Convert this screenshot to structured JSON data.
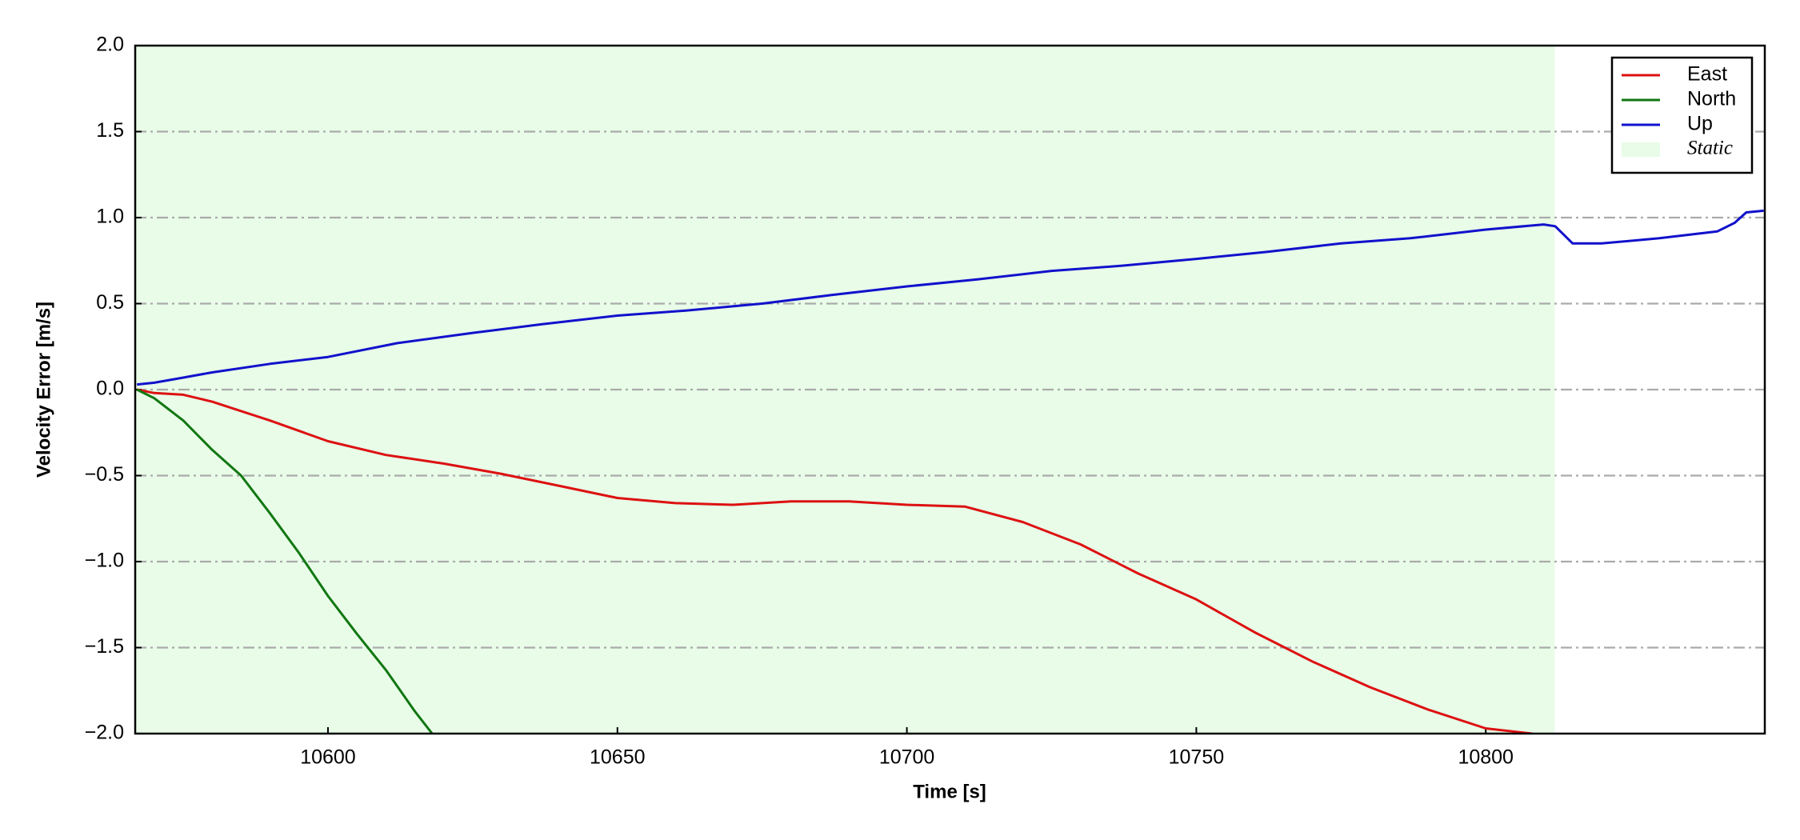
{
  "chart_data": {
    "type": "line",
    "xlabel": "Time [s]",
    "ylabel": "Velocity Error [m/s]",
    "xlim": [
      10566.7,
      10848.2
    ],
    "ylim": [
      -2.0,
      2.0
    ],
    "xticks": [
      10600,
      10650,
      10700,
      10750,
      10800
    ],
    "yticks": [
      {
        "value": -2.0,
        "label": "−2.0"
      },
      {
        "value": -1.5,
        "label": "−1.5"
      },
      {
        "value": -1.0,
        "label": "−1.0"
      },
      {
        "value": -0.5,
        "label": "−0.5"
      },
      {
        "value": 0.0,
        "label": "0.0"
      },
      {
        "value": 0.5,
        "label": "0.5"
      },
      {
        "value": 1.0,
        "label": "1.0"
      },
      {
        "value": 1.5,
        "label": "1.5"
      },
      {
        "value": 2.0,
        "label": "2.0"
      }
    ],
    "grid": true,
    "legend": "upper right",
    "shaded": {
      "name": "Static",
      "color": "#e8fce8",
      "x": [
        10566.7,
        10811.9
      ]
    },
    "series": [
      {
        "name": "East",
        "color": "#dd1111",
        "x": [
          10567,
          10570,
          10575,
          10580,
          10590,
          10600,
          10610,
          10620,
          10630,
          10640,
          10650,
          10660,
          10670,
          10680,
          10690,
          10700,
          10710,
          10720,
          10730,
          10740,
          10750,
          10760,
          10770,
          10780,
          10790,
          10800,
          10808
        ],
        "values": [
          0,
          -0.02,
          -0.03,
          -0.07,
          -0.18,
          -0.3,
          -0.38,
          -0.43,
          -0.49,
          -0.56,
          -0.63,
          -0.66,
          -0.67,
          -0.65,
          -0.65,
          -0.67,
          -0.68,
          -0.77,
          -0.9,
          -1.07,
          -1.22,
          -1.41,
          -1.58,
          -1.73,
          -1.86,
          -1.97,
          -2.0
        ]
      },
      {
        "name": "North",
        "color": "#117711",
        "x": [
          10567,
          10570,
          10575,
          10580,
          10585,
          10590,
          10595,
          10600,
          10605,
          10610,
          10615,
          10618
        ],
        "values": [
          0,
          -0.05,
          -0.18,
          -0.35,
          -0.5,
          -0.72,
          -0.95,
          -1.2,
          -1.42,
          -1.63,
          -1.87,
          -2.0
        ]
      },
      {
        "name": "Up",
        "color": "#1111cc",
        "x": [
          10567,
          10570,
          10575,
          10580,
          10590,
          10600,
          10612,
          10625,
          10637,
          10650,
          10662,
          10675,
          10687,
          10700,
          10712,
          10725,
          10737,
          10750,
          10762,
          10775,
          10787,
          10800,
          10810,
          10812,
          10815,
          10820,
          10830,
          10840,
          10843,
          10845,
          10848
        ],
        "values": [
          0.03,
          0.04,
          0.07,
          0.1,
          0.15,
          0.19,
          0.27,
          0.33,
          0.38,
          0.43,
          0.46,
          0.5,
          0.55,
          0.6,
          0.64,
          0.69,
          0.72,
          0.76,
          0.8,
          0.85,
          0.88,
          0.93,
          0.96,
          0.95,
          0.85,
          0.85,
          0.88,
          0.92,
          0.97,
          1.03,
          1.04
        ]
      }
    ]
  }
}
